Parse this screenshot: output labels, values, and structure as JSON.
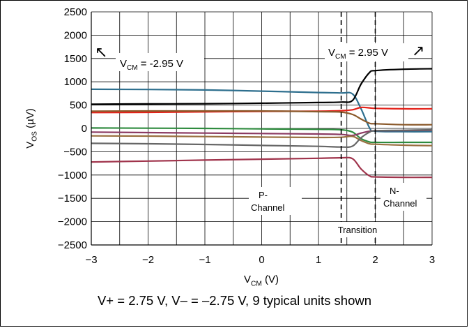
{
  "chart_data": {
    "type": "line",
    "xlabel": {
      "main": "V",
      "sub": "CM",
      "unit": " (V)"
    },
    "ylabel": {
      "main": "V",
      "sub": "OS",
      "unit": " (µV)"
    },
    "xlim": [
      -3,
      3
    ],
    "ylim": [
      -2500,
      2500
    ],
    "x_ticks": [
      -3,
      -2,
      -1,
      0,
      1,
      2,
      3
    ],
    "x_tick_labels": [
      "−3",
      "−2",
      "−1",
      "0",
      "1",
      "2",
      "3"
    ],
    "y_ticks": [
      2500,
      2000,
      1500,
      1000,
      500,
      0,
      -500,
      -1000,
      -1500,
      -2000,
      -2500
    ],
    "y_tick_labels": [
      "2500",
      "2000",
      "1500",
      "1000",
      "500",
      "0",
      "−500",
      "−1000",
      "−1500",
      "−2000",
      "−2500"
    ],
    "grid": true,
    "series": [
      {
        "color": "#2e6f8e",
        "x": [
          -3,
          -2,
          -1,
          0,
          1,
          1.4,
          1.6,
          1.75,
          1.9,
          2.0,
          2.5,
          3
        ],
        "y": [
          840,
          835,
          825,
          800,
          770,
          760,
          740,
          420,
          10,
          -60,
          -70,
          -70
        ]
      },
      {
        "color": "#000000",
        "x": [
          -3,
          -2,
          -1,
          0,
          1,
          1.4,
          1.6,
          1.75,
          1.9,
          2.0,
          2.5,
          3
        ],
        "y": [
          520,
          525,
          530,
          540,
          555,
          565,
          600,
          950,
          1200,
          1240,
          1270,
          1280
        ]
      },
      {
        "color": "#e32119",
        "x": [
          -3,
          -2,
          -1,
          0,
          1,
          1.4,
          1.6,
          1.75,
          1.9,
          2.0,
          2.5,
          3
        ],
        "y": [
          340,
          345,
          355,
          365,
          370,
          380,
          400,
          450,
          440,
          430,
          420,
          420
        ]
      },
      {
        "color": "#8b5a2b",
        "x": [
          -3,
          -2,
          -1,
          0,
          1,
          1.4,
          1.6,
          1.75,
          1.9,
          2.0,
          2.5,
          3
        ],
        "y": [
          370,
          375,
          375,
          375,
          360,
          350,
          300,
          200,
          110,
          100,
          80,
          80
        ]
      },
      {
        "color": "#2e8b3e",
        "x": [
          -3,
          -2,
          -1,
          0,
          1,
          1.4,
          1.6,
          1.75,
          1.9,
          2.0,
          2.5,
          3
        ],
        "y": [
          10,
          5,
          0,
          -10,
          -20,
          -30,
          -80,
          -220,
          -290,
          -300,
          -300,
          -300
        ]
      },
      {
        "color": "#8b3a62",
        "x": [
          -3,
          -2,
          -1,
          0,
          1,
          1.4,
          1.6,
          1.75,
          1.9,
          2.0,
          2.5,
          3
        ],
        "y": [
          -80,
          -90,
          -100,
          -110,
          -120,
          -130,
          -150,
          -100,
          -60,
          -50,
          -45,
          -40
        ]
      },
      {
        "color": "#9a7040",
        "x": [
          -3,
          -2,
          -1,
          0,
          1,
          1.4,
          1.6,
          1.75,
          1.9,
          2.0,
          2.5,
          3
        ],
        "y": [
          -160,
          -165,
          -175,
          -185,
          -195,
          -190,
          -170,
          -260,
          -330,
          -340,
          -360,
          -370
        ]
      },
      {
        "color": "#666666",
        "x": [
          -3,
          -2,
          -1,
          0,
          1,
          1.4,
          1.6,
          1.75,
          1.9,
          2.0,
          2.5,
          3
        ],
        "y": [
          -320,
          -330,
          -345,
          -365,
          -385,
          -400,
          -380,
          -200,
          -80,
          -50,
          -40,
          -30
        ]
      },
      {
        "color": "#a0344c",
        "x": [
          -3,
          -2,
          -1,
          0,
          1,
          1.4,
          1.6,
          1.75,
          1.9,
          2.0,
          2.5,
          3
        ],
        "y": [
          -720,
          -700,
          -680,
          -660,
          -640,
          -630,
          -650,
          -870,
          -1020,
          -1040,
          -1050,
          -1050
        ]
      }
    ],
    "vlines": [
      1.4,
      2.0
    ],
    "annotations": {
      "left_vcm": {
        "pre": "V",
        "sub": "CM",
        "post": " = -2.95 V",
        "arrow": "↖"
      },
      "right_vcm": {
        "pre": "V",
        "sub": "CM",
        "post": " = 2.95 V",
        "arrow": "↗"
      },
      "p_channel": [
        "P-",
        "Channel"
      ],
      "n_channel": [
        "N-",
        "Channel"
      ],
      "transition": "Transition"
    }
  },
  "caption": "V+ = 2.75 V, V– = –2.75 V, 9 typical units shown"
}
